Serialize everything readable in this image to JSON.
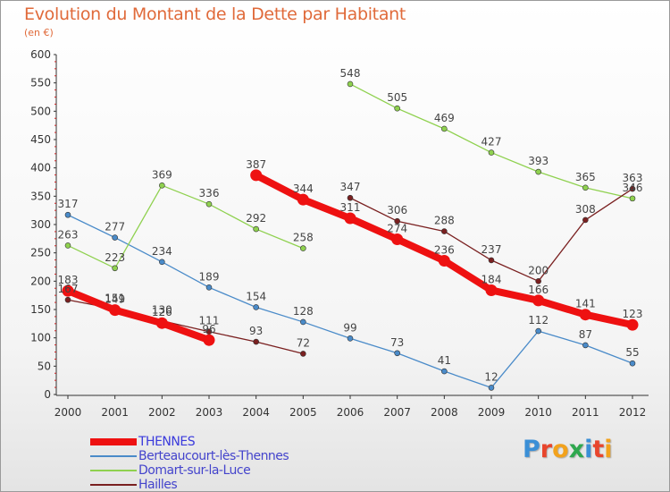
{
  "header": {
    "title": "Evolution du Montant de la Dette par Habitant",
    "subtitle": "(en €)"
  },
  "logo": {
    "text": "Proxiti",
    "colors": [
      "#3b8fd6",
      "#e8452c",
      "#f2a21c",
      "#2fa84f",
      "#3b8fd6",
      "#e8452c",
      "#f2a21c"
    ]
  },
  "colors": {
    "title": "#e06a3a",
    "axis": "#333333",
    "tick_text": "#333333"
  },
  "chart_data": {
    "type": "line",
    "title": "Evolution du Montant de la Dette par Habitant",
    "subtitle": "(en €)",
    "xlabel": "",
    "ylabel": "",
    "x": [
      2000,
      2001,
      2002,
      2003,
      2004,
      2005,
      2006,
      2007,
      2008,
      2009,
      2010,
      2011,
      2012
    ],
    "ylim": [
      0,
      600
    ],
    "yticks": [
      0,
      50,
      100,
      150,
      200,
      250,
      300,
      350,
      400,
      450,
      500,
      550,
      600
    ],
    "grid": false,
    "legend_position": "bottom-left",
    "series": [
      {
        "name": "THENNES",
        "color": "#ee1111",
        "thick": true,
        "segments": [
          [
            0,
            3
          ],
          [
            4,
            12
          ]
        ],
        "values": [
          183,
          149,
          126,
          96,
          387,
          344,
          311,
          274,
          236,
          184,
          166,
          141,
          123
        ]
      },
      {
        "name": "Berteaucourt-lès-Thennes",
        "color": "#4a8bc9",
        "thick": false,
        "segments": [
          [
            0,
            12
          ]
        ],
        "values": [
          317,
          277,
          234,
          189,
          154,
          128,
          99,
          73,
          41,
          12,
          112,
          87,
          55
        ]
      },
      {
        "name": "Domart-sur-la-Luce",
        "color": "#8fd14f",
        "thick": false,
        "segments": [
          [
            0,
            5
          ],
          [
            6,
            12
          ]
        ],
        "values": [
          263,
          223,
          369,
          336,
          292,
          258,
          548,
          505,
          469,
          427,
          393,
          365,
          346
        ]
      },
      {
        "name": "Hailles",
        "color": "#7a2020",
        "thick": false,
        "segments": [
          [
            0,
            5
          ],
          [
            6,
            12
          ]
        ],
        "values": [
          167,
          151,
          130,
          111,
          93,
          72,
          347,
          306,
          288,
          237,
          200,
          308,
          363
        ]
      }
    ]
  }
}
